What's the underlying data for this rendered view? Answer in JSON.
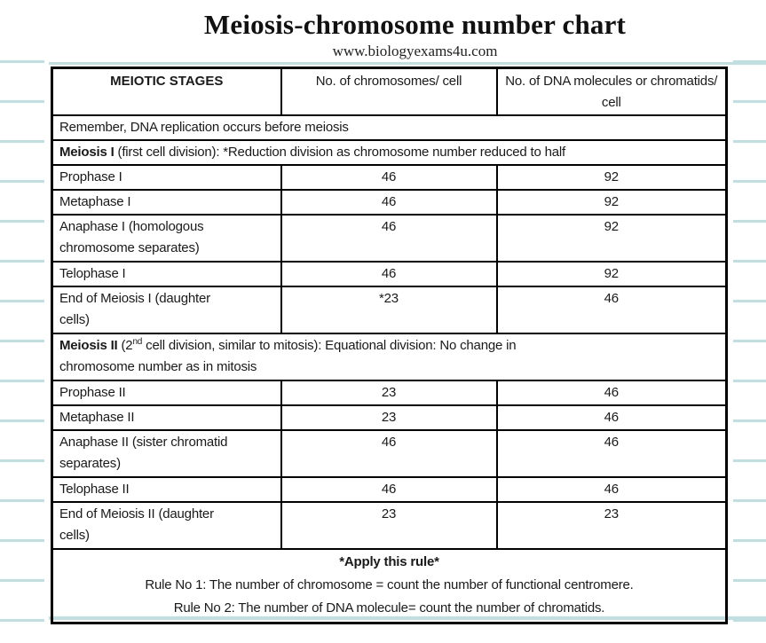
{
  "page": {
    "title": "Meiosis-chromosome number chart",
    "subtitle": "www.biologyexams4u.com"
  },
  "table": {
    "headers": [
      "MEIOTIC STAGES",
      "No. of chromosomes/ cell",
      "No. of DNA molecules or chromatids/ cell"
    ],
    "note": "Remember, DNA replication occurs before meiosis",
    "section1": {
      "bold": "Meiosis I",
      "rest": " (first cell division): *Reduction division as chromosome number reduced to half"
    },
    "rows1": [
      {
        "stage": "Prophase I",
        "chromosomes": "46",
        "dna": "92"
      },
      {
        "stage": "Metaphase I",
        "chromosomes": "46",
        "dna": "92"
      },
      {
        "stage": "Anaphase I (homologous chromosome separates)",
        "chromosomes": "46",
        "dna": "92"
      },
      {
        "stage": "Telophase I",
        "chromosomes": "46",
        "dna": "92"
      },
      {
        "stage": "End of Meiosis I (daughter cells)",
        "chromosomes": "*23",
        "dna": "46"
      }
    ],
    "section2": {
      "bold": "Meiosis II",
      "mid": " (2",
      "sup": "nd",
      "rest1": " cell division, similar to mitosis): Equational division: No change in",
      "rest2": "chromosome number as in mitosis"
    },
    "rows2": [
      {
        "stage": "Prophase II",
        "chromosomes": "23",
        "dna": "46"
      },
      {
        "stage": "Metaphase II",
        "chromosomes": "23",
        "dna": "46"
      },
      {
        "stage": "Anaphase II (sister chromatid separates)",
        "chromosomes": "46",
        "dna": "46"
      },
      {
        "stage": "Telophase II",
        "chromosomes": "46",
        "dna": "46"
      },
      {
        "stage": "End of Meiosis II (daughter cells)",
        "chromosomes": "23",
        "dna": "23"
      }
    ],
    "footer": {
      "title": "*Apply this rule*",
      "rule1": "Rule No 1: The number of chromosome = count the number of functional centromere.",
      "rule2": "Rule No 2: The number of DNA molecule= count the number of chromatids."
    }
  },
  "colors": {
    "notebook_line": "#bee0e2",
    "table_border": "#000000",
    "text": "#1a1a1a"
  }
}
